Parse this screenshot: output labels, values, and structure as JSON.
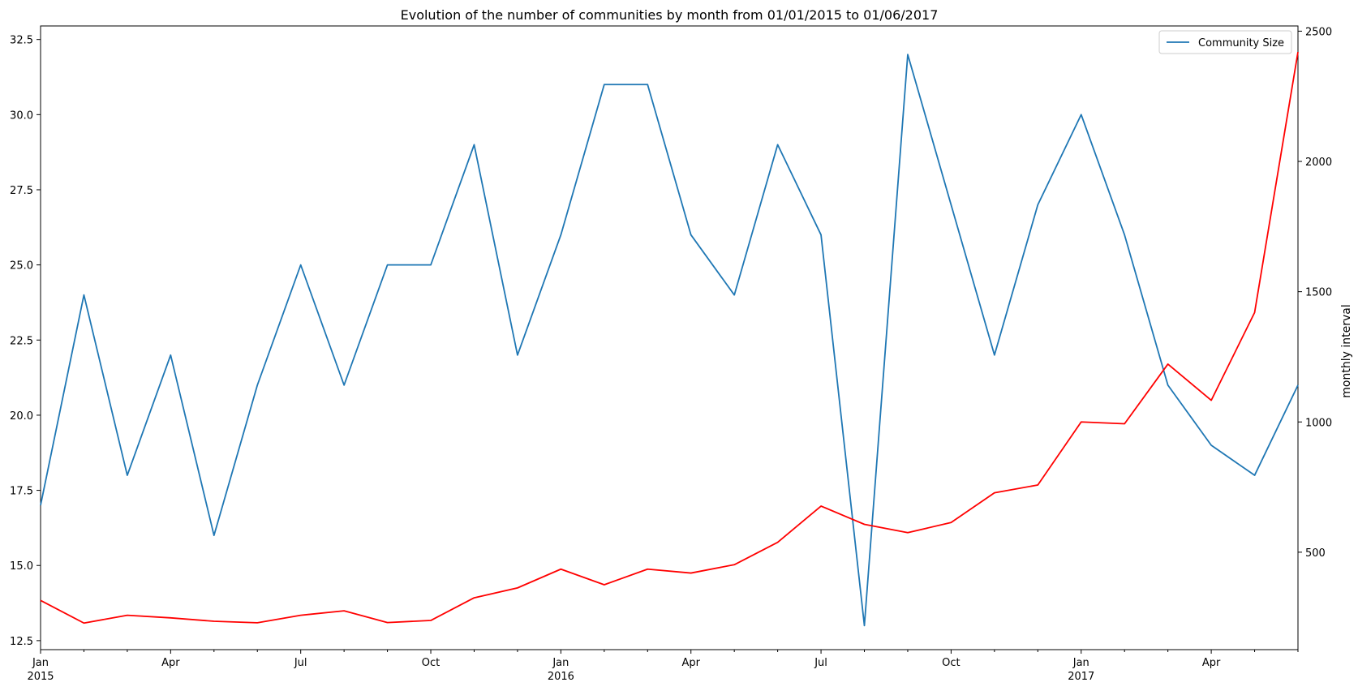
{
  "chart_data": {
    "type": "line",
    "title": "Evolution of the number of communities by month from 01/01/2015 to 01/06/2017",
    "x": [
      "2015-01",
      "2015-02",
      "2015-03",
      "2015-04",
      "2015-05",
      "2015-06",
      "2015-07",
      "2015-08",
      "2015-09",
      "2015-10",
      "2015-11",
      "2015-12",
      "2016-01",
      "2016-02",
      "2016-03",
      "2016-04",
      "2016-05",
      "2016-06",
      "2016-07",
      "2016-08",
      "2016-09",
      "2016-10",
      "2016-11",
      "2016-12",
      "2017-01",
      "2017-02",
      "2017-03",
      "2017-04",
      "2017-05",
      "2017-06"
    ],
    "x_tick_labels": [
      {
        "x": "2015-01",
        "label": "Jan",
        "sublabel": "2015"
      },
      {
        "x": "2015-04",
        "label": "Apr",
        "sublabel": ""
      },
      {
        "x": "2015-07",
        "label": "Jul",
        "sublabel": ""
      },
      {
        "x": "2015-10",
        "label": "Oct",
        "sublabel": ""
      },
      {
        "x": "2016-01",
        "label": "Jan",
        "sublabel": "2016"
      },
      {
        "x": "2016-04",
        "label": "Apr",
        "sublabel": ""
      },
      {
        "x": "2016-07",
        "label": "Jul",
        "sublabel": ""
      },
      {
        "x": "2016-10",
        "label": "Oct",
        "sublabel": ""
      },
      {
        "x": "2017-01",
        "label": "Jan",
        "sublabel": "2017"
      },
      {
        "x": "2017-04",
        "label": "Apr",
        "sublabel": ""
      }
    ],
    "series": [
      {
        "name": "Community Size",
        "axis": "left",
        "color": "#1f77b4",
        "values": [
          17,
          24,
          18,
          22,
          16,
          21,
          25,
          21,
          25,
          25,
          29,
          22,
          26,
          31,
          31,
          26,
          24,
          29,
          26,
          13,
          32,
          27,
          22,
          27,
          30,
          26,
          21,
          19,
          18,
          21
        ]
      },
      {
        "axis": "right",
        "color": "#ff0000",
        "values": [
          315,
          228,
          258,
          248,
          235,
          229,
          258,
          275,
          230,
          238,
          325,
          363,
          435,
          375,
          435,
          420,
          452,
          538,
          677,
          607,
          575,
          614,
          728,
          758,
          1000,
          993,
          1222,
          1083,
          1420,
          2420
        ]
      }
    ],
    "left_axis": {
      "ylim": [
        12.2,
        32.95
      ],
      "ticks": [
        12.5,
        15.0,
        17.5,
        20.0,
        22.5,
        25.0,
        27.5,
        30.0,
        32.5
      ],
      "tick_labels": [
        "12.5",
        "15.0",
        "17.5",
        "20.0",
        "22.5",
        "25.0",
        "27.5",
        "30.0",
        "32.5"
      ],
      "label": ""
    },
    "right_axis": {
      "ylim": [
        126,
        2520
      ],
      "ticks": [
        500,
        1000,
        1500,
        2000,
        2500
      ],
      "tick_labels": [
        "500",
        "1000",
        "1500",
        "2000",
        "2500"
      ],
      "label": "monthly interval"
    },
    "legend": {
      "position": "top-right",
      "entries": [
        "Community Size"
      ]
    },
    "grid": false
  }
}
